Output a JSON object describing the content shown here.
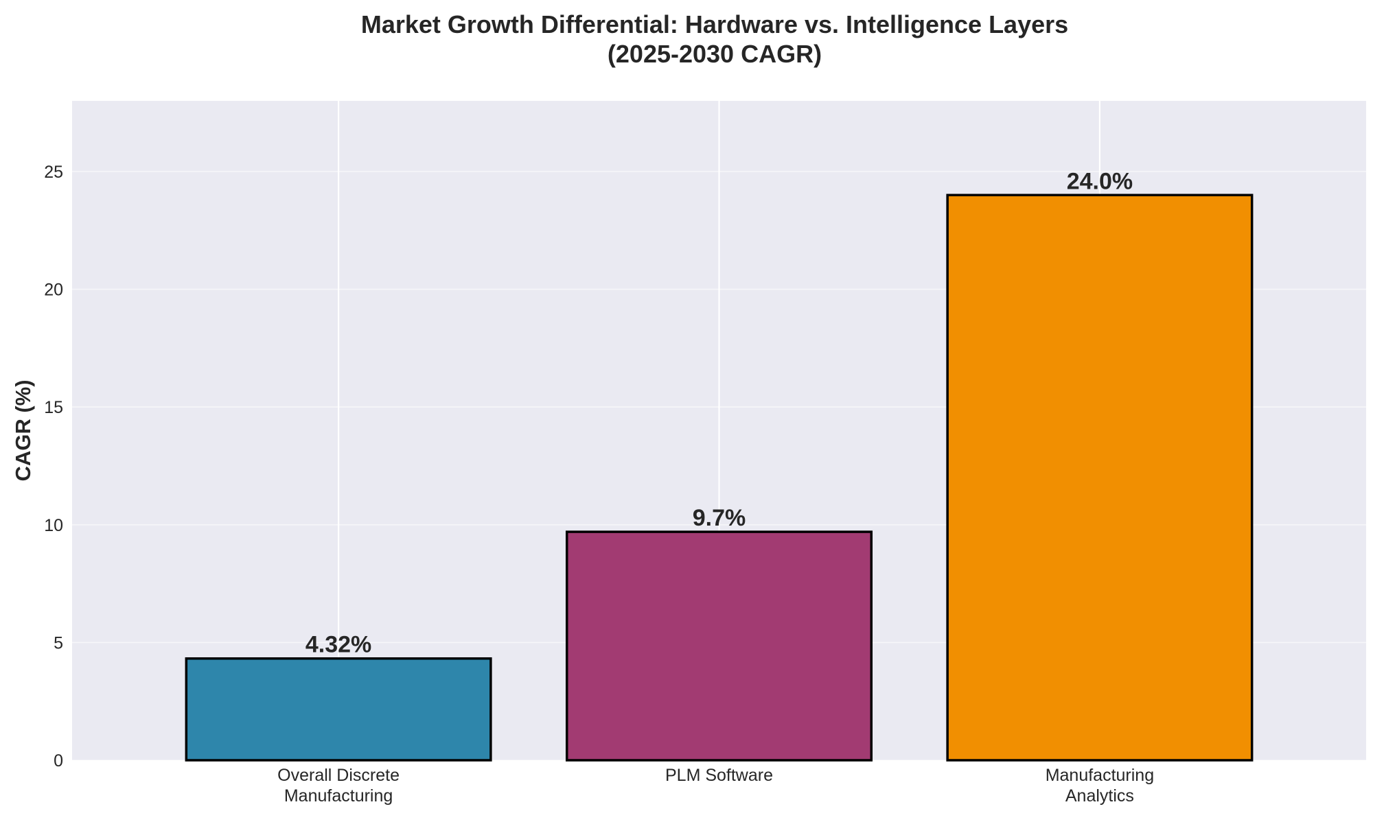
{
  "chart_data": {
    "type": "bar",
    "title": [
      "Market Growth Differential: Hardware vs. Intelligence Layers",
      "(2025-2030 CAGR)"
    ],
    "xlabel": "",
    "ylabel": "CAGR (%)",
    "ylim": [
      0,
      28
    ],
    "yticks": [
      0,
      5,
      10,
      15,
      20,
      25
    ],
    "categories": [
      [
        "Overall Discrete",
        "Manufacturing"
      ],
      [
        "PLM Software"
      ],
      [
        "Manufacturing",
        "Analytics"
      ]
    ],
    "values": [
      4.32,
      9.7,
      24.0
    ],
    "value_labels": [
      "4.32%",
      "9.7%",
      "24.0%"
    ],
    "colors": [
      "#2E86AB",
      "#A23B72",
      "#F18F01"
    ],
    "background": "#EAEAF2",
    "grid": true,
    "legend": "none"
  }
}
